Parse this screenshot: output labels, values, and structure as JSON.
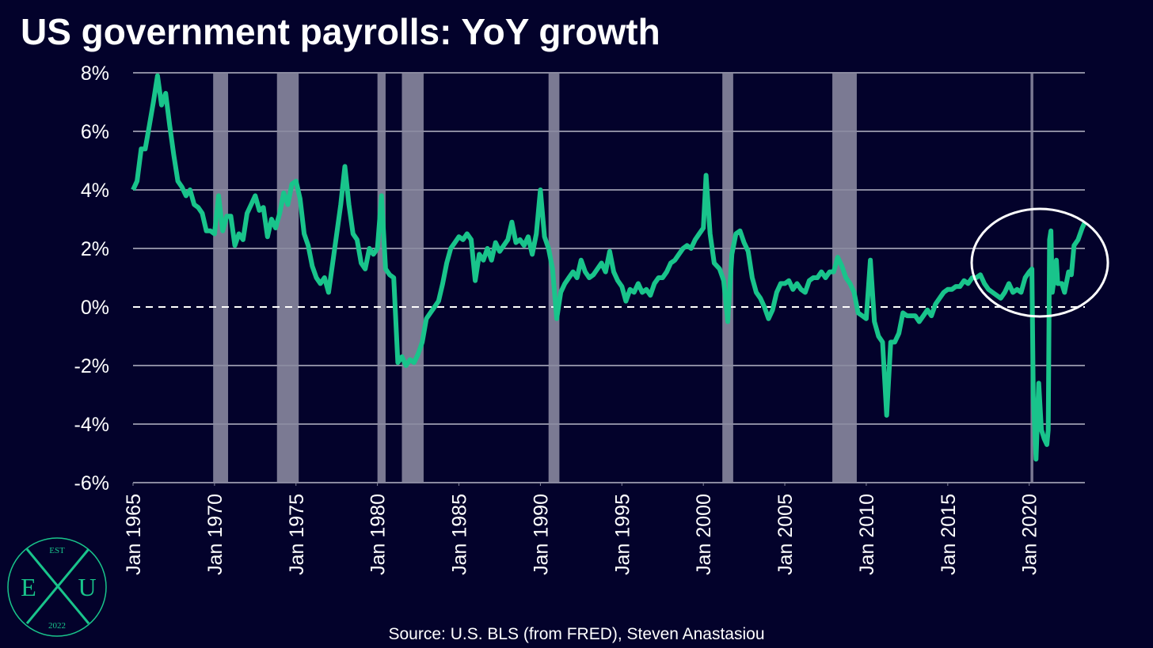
{
  "chart_data": {
    "type": "line",
    "title": "US government payrolls: YoY growth",
    "source": "Source: U.S. BLS (from FRED), Steven Anastasiou",
    "logo": {
      "top": "EST",
      "left": "E",
      "right": "U",
      "bottom": "2022"
    },
    "xlim": [
      "1965-01",
      "2023-06"
    ],
    "xticks": [
      {
        "value": "1965-01",
        "label": "Jan 1965"
      },
      {
        "value": "1970-01",
        "label": "Jan 1970"
      },
      {
        "value": "1975-01",
        "label": "Jan 1975"
      },
      {
        "value": "1980-01",
        "label": "Jan 1980"
      },
      {
        "value": "1985-01",
        "label": "Jan 1985"
      },
      {
        "value": "1990-01",
        "label": "Jan 1990"
      },
      {
        "value": "1995-01",
        "label": "Jan 1995"
      },
      {
        "value": "2000-01",
        "label": "Jan 2000"
      },
      {
        "value": "2005-01",
        "label": "Jan 2005"
      },
      {
        "value": "2010-01",
        "label": "Jan 2010"
      },
      {
        "value": "2015-01",
        "label": "Jan 2015"
      },
      {
        "value": "2020-01",
        "label": "Jan 2020"
      }
    ],
    "ylim": [
      -6,
      8
    ],
    "yticks": [
      {
        "value": -6,
        "label": "-6%"
      },
      {
        "value": -4,
        "label": "-4%"
      },
      {
        "value": -2,
        "label": "-2%"
      },
      {
        "value": 0,
        "label": "0%"
      },
      {
        "value": 2,
        "label": "2%"
      },
      {
        "value": 4,
        "label": "4%"
      },
      {
        "value": 6,
        "label": "6%"
      },
      {
        "value": 8,
        "label": "8%"
      }
    ],
    "grid": true,
    "recessions": [
      [
        "1969-12",
        "1970-11"
      ],
      [
        "1973-11",
        "1975-03"
      ],
      [
        "1980-01",
        "1980-07"
      ],
      [
        "1981-07",
        "1982-11"
      ],
      [
        "1990-07",
        "1991-03"
      ],
      [
        "2001-03",
        "2001-11"
      ],
      [
        "2007-12",
        "2009-06"
      ],
      [
        "2020-02",
        "2020-04"
      ]
    ],
    "recession_color": "#7b7a93",
    "x": [
      "1965-01",
      "1965-04",
      "1965-07",
      "1965-10",
      "1966-01",
      "1966-04",
      "1966-07",
      "1966-10",
      "1967-01",
      "1967-04",
      "1967-07",
      "1967-10",
      "1968-01",
      "1968-04",
      "1968-07",
      "1968-10",
      "1969-01",
      "1969-04",
      "1969-07",
      "1969-10",
      "1970-01",
      "1970-04",
      "1970-07",
      "1970-10",
      "1971-01",
      "1971-04",
      "1971-07",
      "1971-10",
      "1972-01",
      "1972-04",
      "1972-07",
      "1972-10",
      "1973-01",
      "1973-04",
      "1973-07",
      "1973-10",
      "1974-01",
      "1974-04",
      "1974-07",
      "1974-10",
      "1975-01",
      "1975-04",
      "1975-07",
      "1975-10",
      "1976-01",
      "1976-04",
      "1976-07",
      "1976-10",
      "1977-01",
      "1977-04",
      "1977-07",
      "1977-10",
      "1978-01",
      "1978-04",
      "1978-07",
      "1978-10",
      "1979-01",
      "1979-04",
      "1979-07",
      "1979-10",
      "1980-01",
      "1980-04",
      "1980-07",
      "1980-10",
      "1981-01",
      "1981-04",
      "1981-07",
      "1981-10",
      "1982-01",
      "1982-04",
      "1982-07",
      "1982-10",
      "1983-01",
      "1983-04",
      "1983-07",
      "1983-10",
      "1984-01",
      "1984-04",
      "1984-07",
      "1984-10",
      "1985-01",
      "1985-04",
      "1985-07",
      "1985-10",
      "1986-01",
      "1986-04",
      "1986-07",
      "1986-10",
      "1987-01",
      "1987-04",
      "1987-07",
      "1987-10",
      "1988-01",
      "1988-04",
      "1988-07",
      "1988-10",
      "1989-01",
      "1989-04",
      "1989-07",
      "1989-10",
      "1990-01",
      "1990-04",
      "1990-07",
      "1990-10",
      "1991-01",
      "1991-04",
      "1991-07",
      "1991-10",
      "1992-01",
      "1992-04",
      "1992-07",
      "1992-10",
      "1993-01",
      "1993-04",
      "1993-07",
      "1993-10",
      "1994-01",
      "1994-04",
      "1994-07",
      "1994-10",
      "1995-01",
      "1995-04",
      "1995-07",
      "1995-10",
      "1996-01",
      "1996-04",
      "1996-07",
      "1996-10",
      "1997-01",
      "1997-04",
      "1997-07",
      "1997-10",
      "1998-01",
      "1998-04",
      "1998-07",
      "1998-10",
      "1999-01",
      "1999-04",
      "1999-07",
      "1999-10",
      "2000-01",
      "2000-03",
      "2000-06",
      "2000-09",
      "2001-01",
      "2001-04",
      "2001-07",
      "2001-10",
      "2002-01",
      "2002-04",
      "2002-07",
      "2002-10",
      "2003-01",
      "2003-04",
      "2003-07",
      "2003-10",
      "2004-01",
      "2004-04",
      "2004-07",
      "2004-10",
      "2005-01",
      "2005-04",
      "2005-07",
      "2005-10",
      "2006-01",
      "2006-04",
      "2006-07",
      "2006-10",
      "2007-01",
      "2007-04",
      "2007-07",
      "2007-10",
      "2008-01",
      "2008-04",
      "2008-07",
      "2008-10",
      "2009-01",
      "2009-04",
      "2009-07",
      "2009-10",
      "2010-01",
      "2010-04",
      "2010-07",
      "2010-10",
      "2011-01",
      "2011-04",
      "2011-07",
      "2011-10",
      "2012-01",
      "2012-04",
      "2012-07",
      "2012-10",
      "2013-01",
      "2013-04",
      "2013-07",
      "2013-10",
      "2014-01",
      "2014-04",
      "2014-07",
      "2014-10",
      "2015-01",
      "2015-04",
      "2015-07",
      "2015-10",
      "2016-01",
      "2016-04",
      "2016-07",
      "2016-10",
      "2017-01",
      "2017-04",
      "2017-07",
      "2017-10",
      "2018-01",
      "2018-04",
      "2018-07",
      "2018-10",
      "2019-01",
      "2019-04",
      "2019-07",
      "2019-10",
      "2020-01",
      "2020-03",
      "2020-04",
      "2020-06",
      "2020-08",
      "2020-10",
      "2020-12",
      "2021-02",
      "2021-03",
      "2021-04",
      "2021-05",
      "2021-06",
      "2021-08",
      "2021-09",
      "2021-10",
      "2022-01",
      "2022-03",
      "2022-06",
      "2022-08",
      "2022-10",
      "2023-01",
      "2023-04",
      "2023-06"
    ],
    "series": [
      {
        "name": "Government payrolls YoY",
        "color": "#19c48b",
        "values": [
          4.0,
          4.3,
          5.4,
          5.4,
          6.2,
          7.0,
          7.9,
          6.9,
          7.3,
          6.2,
          5.2,
          4.3,
          4.1,
          3.8,
          4.0,
          3.5,
          3.4,
          3.2,
          2.6,
          2.6,
          2.5,
          3.8,
          2.6,
          3.1,
          3.1,
          2.1,
          2.5,
          2.3,
          3.2,
          3.5,
          3.8,
          3.3,
          3.4,
          2.4,
          3.0,
          2.7,
          3.2,
          3.9,
          3.5,
          4.2,
          4.3,
          3.7,
          2.5,
          2.1,
          1.4,
          1.0,
          0.8,
          1.0,
          0.5,
          1.5,
          2.5,
          3.5,
          4.8,
          3.5,
          2.5,
          2.3,
          1.5,
          1.3,
          2.0,
          1.8,
          2.0,
          3.8,
          1.3,
          1.1,
          1.0,
          -1.9,
          -1.7,
          -2.0,
          -1.8,
          -1.9,
          -1.6,
          -1.2,
          -0.4,
          -0.2,
          0.0,
          0.2,
          0.8,
          1.5,
          2.0,
          2.2,
          2.4,
          2.3,
          2.5,
          2.3,
          0.9,
          1.8,
          1.6,
          2.0,
          1.6,
          2.2,
          1.9,
          2.1,
          2.3,
          2.9,
          2.2,
          2.3,
          2.1,
          2.4,
          1.8,
          2.5,
          4.0,
          2.4,
          2.0,
          1.3,
          -0.4,
          0.5,
          0.8,
          1.0,
          1.2,
          1.0,
          1.6,
          1.2,
          1.0,
          1.1,
          1.3,
          1.5,
          1.2,
          1.9,
          1.2,
          0.9,
          0.7,
          0.2,
          0.6,
          0.5,
          0.8,
          0.5,
          0.6,
          0.4,
          0.8,
          1.0,
          1.0,
          1.2,
          1.5,
          1.6,
          1.8,
          2.0,
          2.1,
          2.0,
          2.3,
          2.5,
          2.7,
          4.5,
          2.5,
          1.5,
          1.3,
          0.9,
          -0.5,
          1.8,
          2.5,
          2.6,
          2.2,
          1.9,
          1.0,
          0.5,
          0.3,
          0.0,
          -0.4,
          -0.1,
          0.5,
          0.8,
          0.8,
          0.9,
          0.6,
          0.8,
          0.6,
          0.5,
          0.9,
          1.0,
          1.0,
          1.2,
          1.0,
          1.2,
          1.2,
          1.7,
          1.4,
          1.0,
          0.8,
          0.5,
          -0.2,
          -0.3,
          -0.4,
          1.6,
          -0.5,
          -1.0,
          -1.2,
          -3.7,
          -1.2,
          -1.2,
          -0.9,
          -0.2,
          -0.3,
          -0.3,
          -0.3,
          -0.5,
          -0.3,
          -0.1,
          -0.3,
          0.1,
          0.3,
          0.5,
          0.6,
          0.6,
          0.7,
          0.7,
          0.9,
          0.8,
          1.0,
          1.0,
          1.1,
          0.8,
          0.6,
          0.5,
          0.4,
          0.3,
          0.5,
          0.8,
          0.5,
          0.6,
          0.5,
          1.0,
          1.2,
          1.3,
          -3.0,
          -5.2,
          -2.6,
          -4.2,
          -4.5,
          -4.7,
          -4.2,
          2.3,
          2.6,
          0.5,
          1.2,
          1.6,
          0.8,
          0.8,
          0.5,
          1.2,
          1.1,
          2.1,
          2.3,
          2.7,
          2.9
        ]
      }
    ]
  }
}
